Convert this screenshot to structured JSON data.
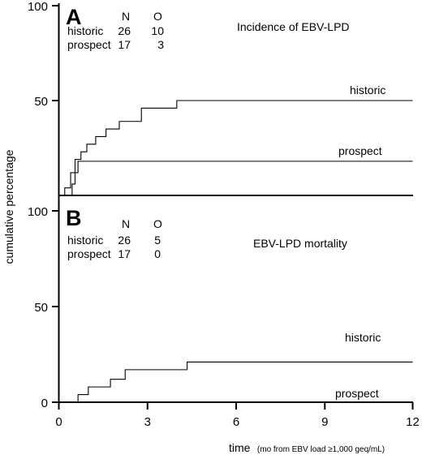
{
  "y_axis_label": "cumulative percentage",
  "x_axis": {
    "label_main": "time",
    "label_note": "(mo from EBV load ≥1,000 geq/mL)",
    "ticks": [
      "0",
      "3",
      "6",
      "9",
      "12"
    ]
  },
  "chart_data": [
    {
      "type": "line",
      "panel": "A",
      "title": "Incidence of EBV-LPD",
      "ylabel": "cumulative percentage",
      "xlabel": "time",
      "xlim": [
        0,
        12
      ],
      "ylim": [
        0,
        100
      ],
      "y_ticks": [
        "100",
        "50"
      ],
      "table": {
        "headers": [
          "N",
          "O"
        ],
        "rows": [
          {
            "group": "historic",
            "n": "26",
            "o": "10"
          },
          {
            "group": "prospect",
            "n": "17",
            "o": "3"
          }
        ]
      },
      "series": [
        {
          "name": "historic",
          "x": [
            0,
            0.2,
            0.4,
            0.55,
            0.75,
            0.95,
            1.25,
            1.6,
            2.05,
            2.8,
            4.0,
            12
          ],
          "y": [
            0,
            4,
            12,
            19,
            23,
            27,
            31,
            35,
            39,
            46,
            50,
            50
          ]
        },
        {
          "name": "prospect",
          "x": [
            0,
            0.45,
            0.55,
            0.65,
            12
          ],
          "y": [
            0,
            6,
            12,
            18,
            18
          ]
        }
      ]
    },
    {
      "type": "line",
      "panel": "B",
      "title": "EBV-LPD mortality",
      "ylabel": "cumulative percentage",
      "xlabel": "time",
      "xlim": [
        0,
        12
      ],
      "ylim": [
        0,
        100
      ],
      "y_ticks": [
        "100",
        "50",
        "0"
      ],
      "table": {
        "headers": [
          "N",
          "O"
        ],
        "rows": [
          {
            "group": "historic",
            "n": "26",
            "o": "5"
          },
          {
            "group": "prospect",
            "n": "17",
            "o": "0"
          }
        ]
      },
      "series": [
        {
          "name": "historic",
          "x": [
            0,
            0.65,
            1.0,
            1.75,
            2.25,
            4.35,
            12
          ],
          "y": [
            0,
            4,
            8,
            12,
            17,
            21,
            21
          ]
        },
        {
          "name": "prospect",
          "x": [
            0,
            12
          ],
          "y": [
            0,
            0
          ]
        }
      ]
    }
  ]
}
